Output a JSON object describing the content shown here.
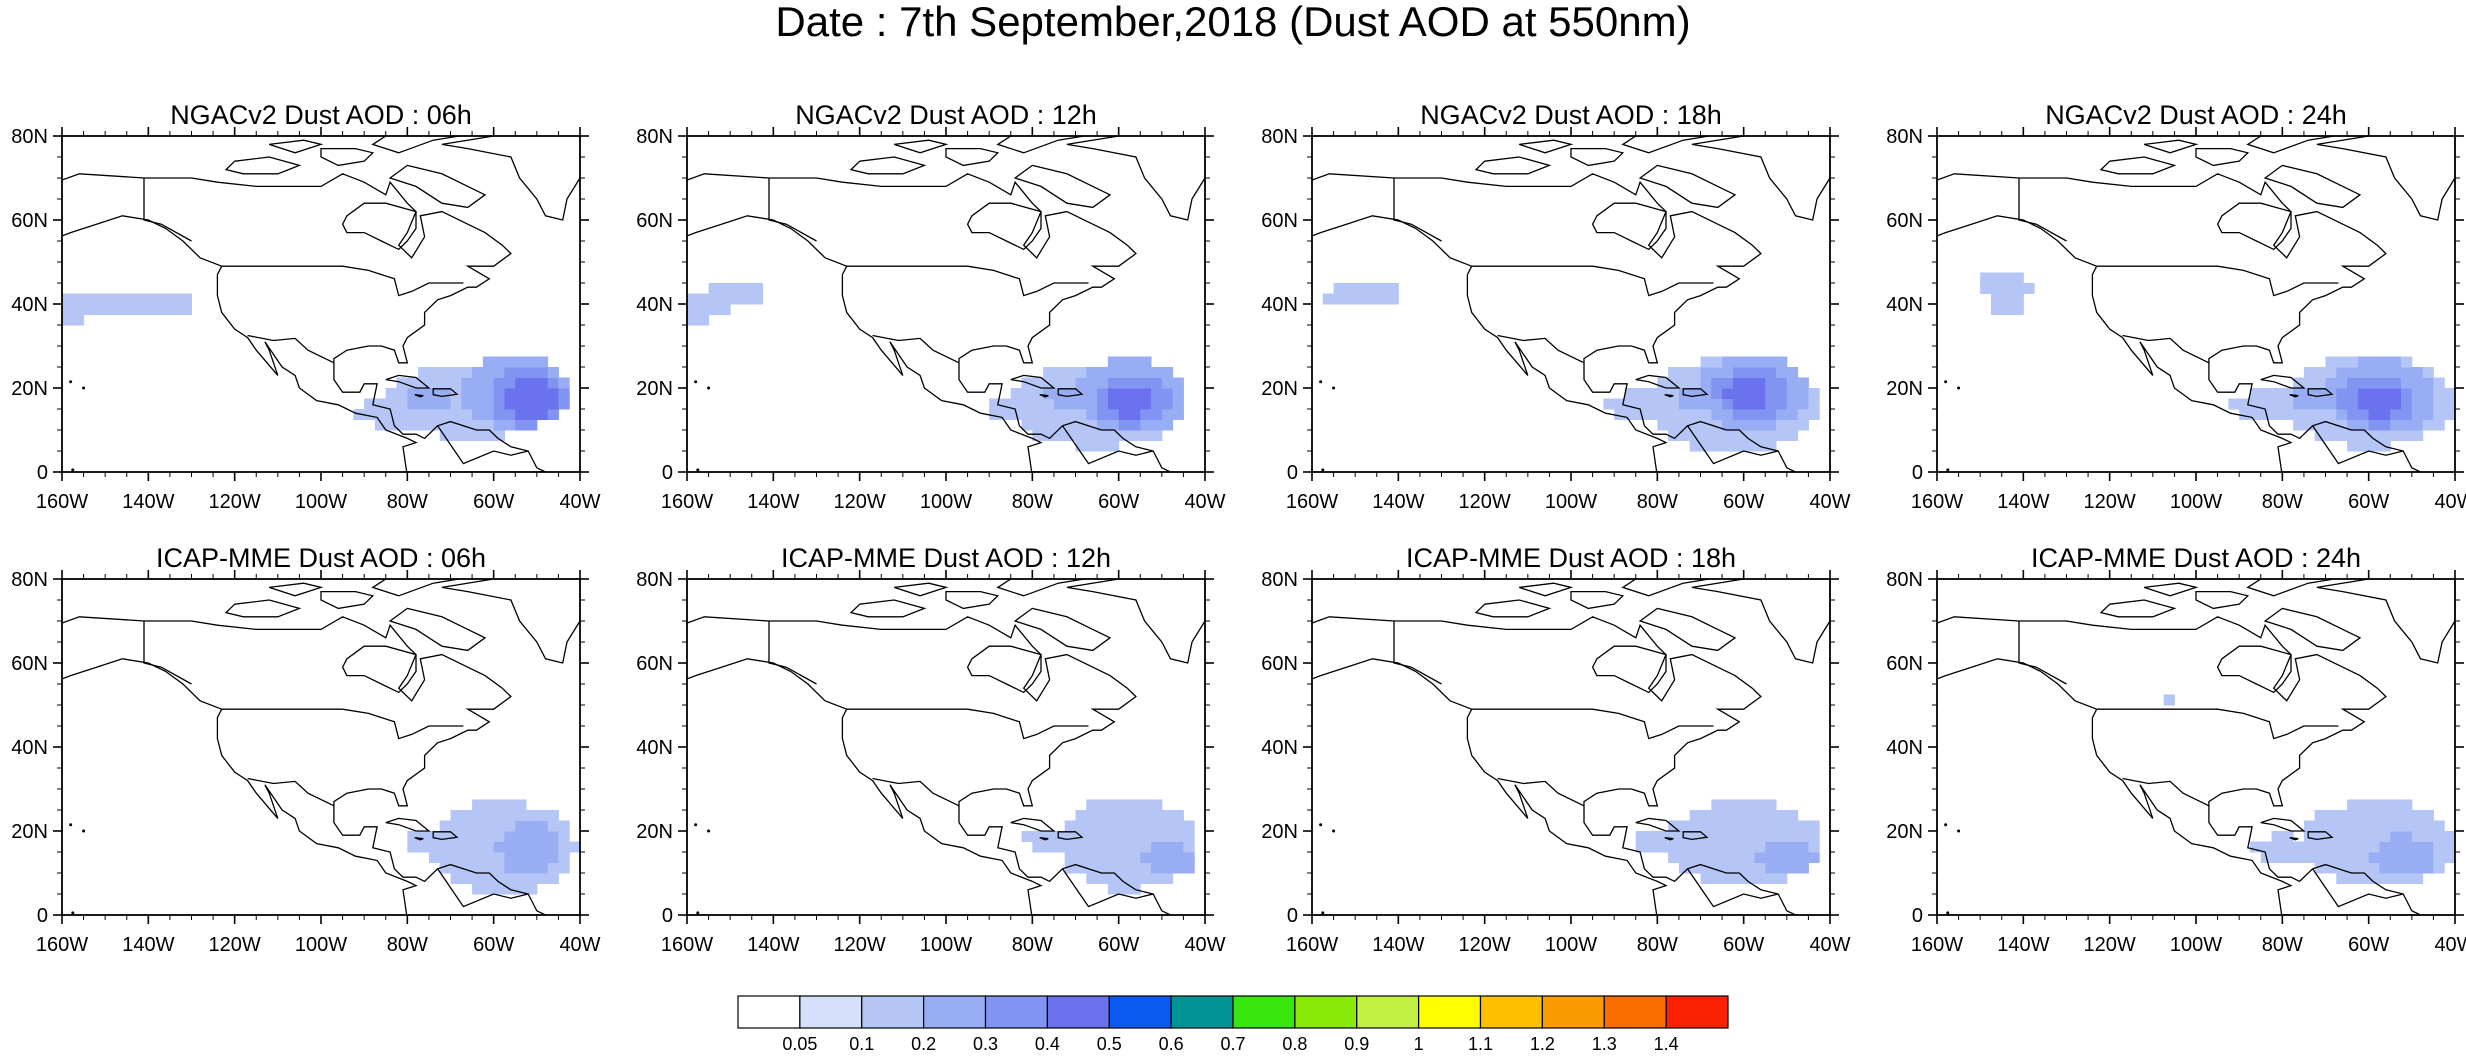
{
  "figure": {
    "title": "Date : 7th September,2018 (Dust AOD at 550nm)"
  },
  "axes": {
    "lat_ticks": [
      "80N",
      "60N",
      "40N",
      "20N",
      "0"
    ],
    "lon_ticks": [
      "160W",
      "140W",
      "120W",
      "100W",
      "80W",
      "60W",
      "40W"
    ],
    "lon_range": [
      -160,
      -40
    ],
    "lat_range": [
      0,
      80
    ]
  },
  "panels": [
    {
      "title": "NGACv2 Dust AOD : 06h",
      "model": "NGACv2",
      "lead": "06h"
    },
    {
      "title": "NGACv2 Dust AOD : 12h",
      "model": "NGACv2",
      "lead": "12h"
    },
    {
      "title": "NGACv2 Dust AOD : 18h",
      "model": "NGACv2",
      "lead": "18h"
    },
    {
      "title": "NGACv2 Dust AOD : 24h",
      "model": "NGACv2",
      "lead": "24h"
    },
    {
      "title": "ICAP-MME Dust AOD : 06h",
      "model": "ICAP-MME",
      "lead": "06h"
    },
    {
      "title": "ICAP-MME Dust AOD : 12h",
      "model": "ICAP-MME",
      "lead": "12h"
    },
    {
      "title": "ICAP-MME Dust AOD : 18h",
      "model": "ICAP-MME",
      "lead": "18h"
    },
    {
      "title": "ICAP-MME Dust AOD : 24h",
      "model": "ICAP-MME",
      "lead": "24h"
    }
  ],
  "colorbar": {
    "labels": [
      "0.05",
      "0.1",
      "0.2",
      "0.3",
      "0.4",
      "0.5",
      "0.6",
      "0.7",
      "0.8",
      "0.9",
      "1",
      "1.1",
      "1.2",
      "1.3",
      "1.4"
    ],
    "colors": [
      "#ffffff",
      "#d6e0fa",
      "#b5c6f6",
      "#98adf3",
      "#8294f2",
      "#6a72ee",
      "#0b5bf2",
      "#009395",
      "#39e60e",
      "#8aea07",
      "#c0f042",
      "#ffff00",
      "#fcc000",
      "#f89a00",
      "#f86d00",
      "#fa2100"
    ]
  }
}
